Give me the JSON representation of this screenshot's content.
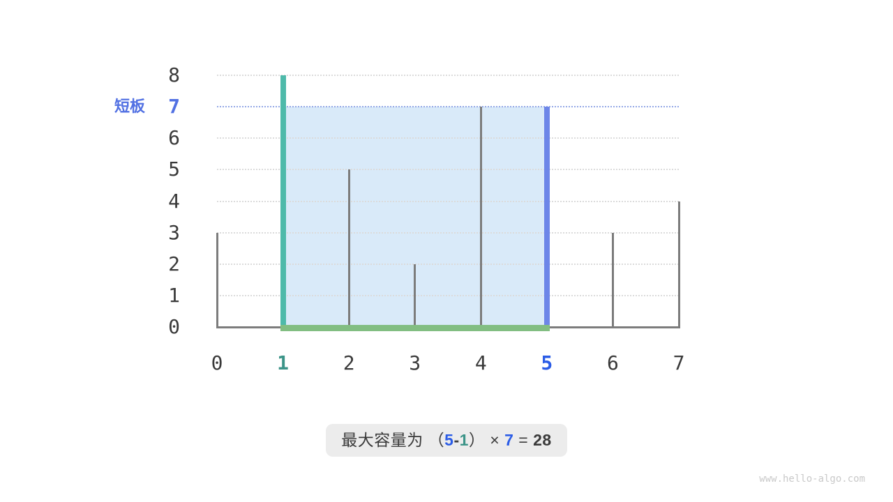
{
  "page": {
    "watermark": "www.hello-algo.com"
  },
  "colors": {
    "bar_gray": "#7C7C7C",
    "bar_left_teal": "#4EBAAA",
    "bar_right_blue": "#6D86E8",
    "bottom_bar_green": "#82BE82",
    "water_fill": "#D9EAF9",
    "gridline": "#DBDBDB",
    "water_level_line": "#93A7E6",
    "text_dark": "#3A3A3A",
    "text_blue": "#2B5CE6",
    "text_blue_soft": "#5271E3",
    "text_teal": "#3C9488",
    "caption_bg": "#ECECEC",
    "watermark": "#C9C9C9"
  },
  "chart_data": {
    "type": "bar",
    "title": "",
    "xlabel": "",
    "ylabel": "",
    "x": [
      0,
      1,
      2,
      3,
      4,
      5,
      6,
      7
    ],
    "heights": [
      3,
      8,
      5,
      2,
      7,
      7,
      3,
      4
    ],
    "xticks": [
      "0",
      "1",
      "2",
      "3",
      "4",
      "5",
      "6",
      "7"
    ],
    "yticks": [
      0,
      1,
      2,
      3,
      4,
      5,
      6,
      7,
      8
    ],
    "ylim": [
      0,
      8
    ],
    "grid": "horizontal-dotted",
    "highlight": {
      "left_index": 1,
      "right_index": 5,
      "short_board_label": "短板",
      "short_board_value": 7,
      "water_level_line_y": 7,
      "width": 4,
      "capacity": 28
    }
  },
  "caption": {
    "segments": [
      {
        "text": "最大容量为 （",
        "color": "dark",
        "bold": false
      },
      {
        "text": "5",
        "color": "blue",
        "bold": true
      },
      {
        "text": "-",
        "color": "dark",
        "bold": true
      },
      {
        "text": "1",
        "color": "teal",
        "bold": true
      },
      {
        "text": "）",
        "color": "dark",
        "bold": false
      },
      {
        "text": " × ",
        "color": "dark",
        "bold": false
      },
      {
        "text": "7",
        "color": "blue",
        "bold": true
      },
      {
        "text": " = ",
        "color": "dark",
        "bold": false
      },
      {
        "text": "28",
        "color": "dark",
        "bold": true
      }
    ]
  }
}
